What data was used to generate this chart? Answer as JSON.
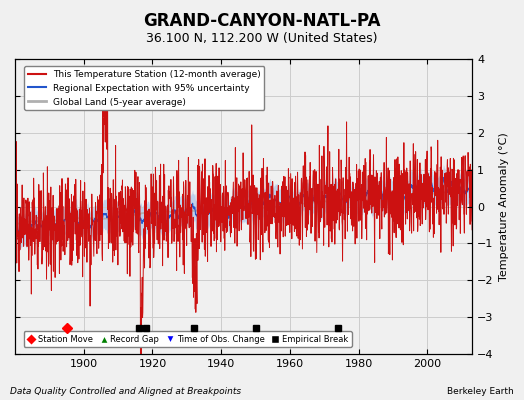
{
  "title": "GRAND-CANYON-NATL-PA",
  "subtitle": "36.100 N, 112.200 W (United States)",
  "ylabel": "Temperature Anomaly (°C)",
  "xlabel_left": "Data Quality Controlled and Aligned at Breakpoints",
  "xlabel_right": "Berkeley Earth",
  "ylim": [
    -4,
    4
  ],
  "xlim": [
    1880,
    2013
  ],
  "xticks": [
    1900,
    1920,
    1940,
    1960,
    1980,
    2000
  ],
  "yticks": [
    -4,
    -3,
    -2,
    -1,
    0,
    1,
    2,
    3,
    4
  ],
  "grid_color": "#cccccc",
  "bg_color": "#f0f0f0",
  "station_move_years": [
    1895
  ],
  "record_gap_years": [],
  "time_obs_change_years": [],
  "empirical_break_years": [
    1916,
    1918,
    1932,
    1950,
    1974
  ],
  "seed": 42
}
